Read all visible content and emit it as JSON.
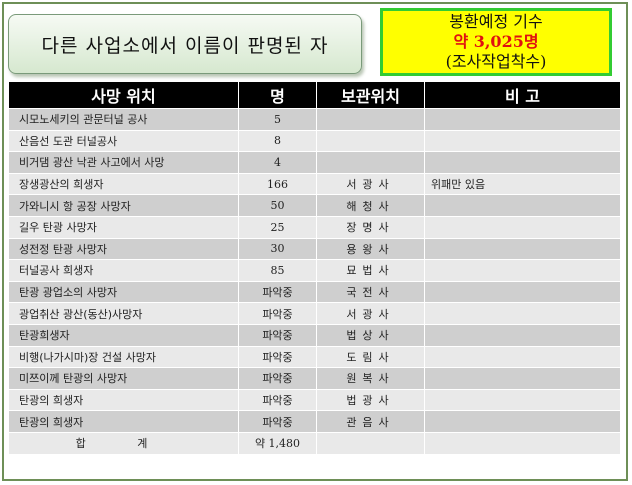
{
  "title": "다른 사업소에서 이름이 판명된 자",
  "callout": {
    "line1": "봉환예정 기수",
    "line2": "약 3,025명",
    "line3": "(조사작업착수)"
  },
  "headers": [
    "사망 위치",
    "명",
    "보관위치",
    "비 고"
  ],
  "rows": [
    {
      "name": "시모노세키의 관문터널 공사",
      "count": "5",
      "location": "",
      "note": ""
    },
    {
      "name": "산음선 도관 터널공사",
      "count": "8",
      "location": "",
      "note": ""
    },
    {
      "name": "비거댐 광산 낙관 사고에서 사망",
      "count": "4",
      "location": "",
      "note": ""
    },
    {
      "name": "장생광산의 희생자",
      "count": "166",
      "location": "서광사",
      "note": "위패만 있음"
    },
    {
      "name": "가와니시 항 공장 사망자",
      "count": "50",
      "location": "해청사",
      "note": ""
    },
    {
      "name": "길우 탄광 사망자",
      "count": "25",
      "location": "장명사",
      "note": ""
    },
    {
      "name": "성전정 탄광 사망자",
      "count": "30",
      "location": "용왕사",
      "note": ""
    },
    {
      "name": "터널공사 희생자",
      "count": "85",
      "location": "묘법사",
      "note": ""
    },
    {
      "name": "탄광 광업소의 사망자",
      "count": "파악중",
      "location": "국전사",
      "note": ""
    },
    {
      "name": "광업취산 광산(동산)사망자",
      "count": "파악중",
      "location": "서광사",
      "note": ""
    },
    {
      "name": "탄광희생자",
      "count": "파악중",
      "location": "법상사",
      "note": ""
    },
    {
      "name": "비행(나가시마)장 건설 사망자",
      "count": "파악중",
      "location": "도림사",
      "note": ""
    },
    {
      "name": "미쯔이께 탄광의 사망자",
      "count": "파악중",
      "location": "원복사",
      "note": ""
    },
    {
      "name": "탄광의 희생자",
      "count": "파악중",
      "location": "법광사",
      "note": ""
    },
    {
      "name": "탄광의 희생자",
      "count": "파악중",
      "location": "관음사",
      "note": ""
    }
  ],
  "total": {
    "label": "합 계",
    "count": "약 1,480"
  }
}
